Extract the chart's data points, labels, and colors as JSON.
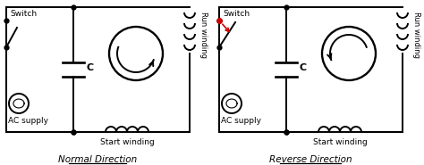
{
  "bg_color": "#ffffff",
  "line_color": "#000000",
  "red_color": "#cc0000",
  "lw": 1.4,
  "title1": "Normal Direction",
  "title2": "Reverse Direction",
  "label_ac": "AC supply",
  "label_cap": "C",
  "label_start": "Start winding",
  "label_run": "Run winding",
  "label_switch": "Switch"
}
